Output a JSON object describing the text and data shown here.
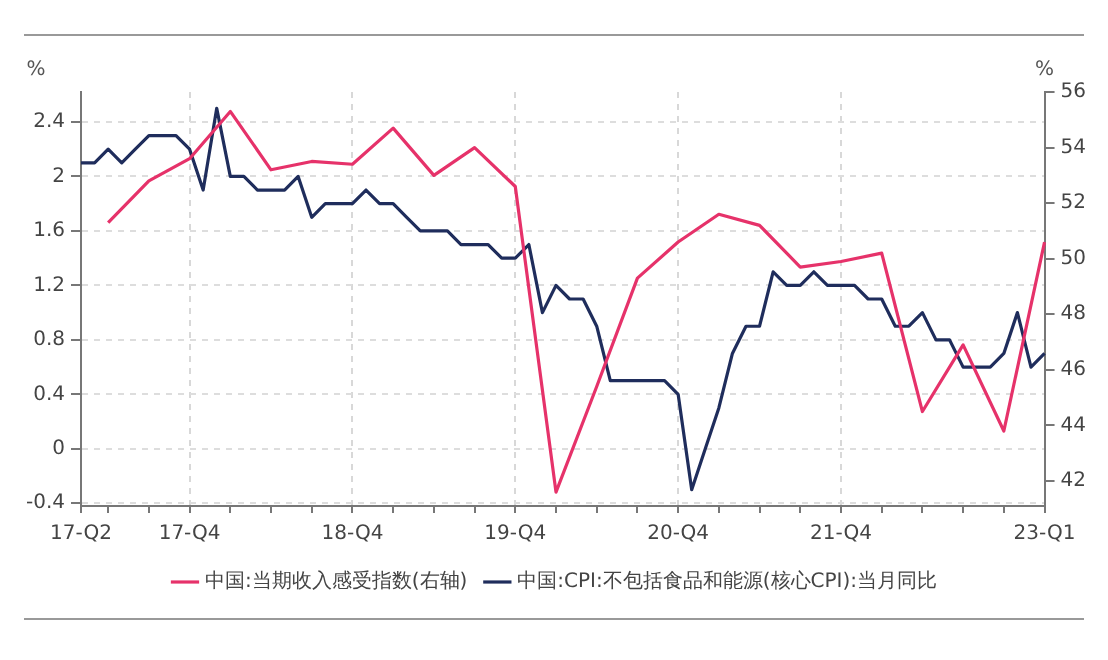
{
  "chart_data": {
    "type": "line",
    "ylabel": "%",
    "y2label": "%",
    "categories": [
      "17-Q2",
      null,
      null,
      null,
      null,
      null,
      null,
      null,
      "17-Q4",
      null,
      null,
      null,
      null,
      null,
      null,
      null,
      null,
      null,
      null,
      null,
      "18-Q4",
      null,
      null,
      null,
      null,
      null,
      null,
      null,
      null,
      null,
      null,
      null,
      "19-Q4",
      null,
      null,
      null,
      null,
      null,
      null,
      null,
      null,
      null,
      null,
      null,
      "20-Q4",
      null,
      null,
      null,
      null,
      null,
      null,
      null,
      null,
      null,
      null,
      null,
      "21-Q4",
      null,
      null,
      null,
      null,
      null,
      null,
      null,
      null,
      null,
      null,
      null,
      null,
      null,
      null,
      "23-Q1"
    ],
    "series": [
      {
        "name": "中国:当期收入感受指数(右轴)",
        "color": "#e6326a",
        "axis": "y2",
        "values": [
          null,
          null,
          51.3,
          null,
          null,
          52.8,
          null,
          null,
          53.6,
          null,
          null,
          55.3,
          null,
          null,
          53.2,
          null,
          null,
          53.5,
          null,
          null,
          53.4,
          null,
          null,
          54.7,
          null,
          null,
          53.0,
          null,
          null,
          54.0,
          null,
          null,
          52.6,
          null,
          null,
          41.6,
          null,
          null,
          45.4,
          null,
          null,
          49.3,
          null,
          null,
          50.6,
          null,
          null,
          51.6,
          null,
          null,
          51.2,
          null,
          null,
          49.7,
          null,
          null,
          49.9,
          null,
          null,
          50.2,
          null,
          null,
          44.5,
          null,
          null,
          46.9,
          null,
          null,
          43.8,
          null,
          null,
          50.6
        ]
      },
      {
        "name": "中国:CPI:不包括食品和能源(核心CPI):当月同比",
        "color": "#1f2d5c",
        "values": [
          2.1,
          2.1,
          2.2,
          2.1,
          2.2,
          2.3,
          2.3,
          2.3,
          2.2,
          1.9,
          2.5,
          2.0,
          2.0,
          1.9,
          1.9,
          1.9,
          2.0,
          1.7,
          1.8,
          1.8,
          1.8,
          1.9,
          1.8,
          1.8,
          1.7,
          1.6,
          1.6,
          1.6,
          1.5,
          1.5,
          1.5,
          1.4,
          1.4,
          1.5,
          1.0,
          1.2,
          1.1,
          1.1,
          0.9,
          0.5,
          0.5,
          0.5,
          0.5,
          0.5,
          0.4,
          -0.3,
          0.0,
          0.3,
          0.7,
          0.9,
          0.9,
          1.3,
          1.2,
          1.2,
          1.3,
          1.2,
          1.2,
          1.2,
          1.1,
          1.1,
          0.9,
          0.9,
          1.0,
          0.8,
          0.8,
          0.6,
          0.6,
          0.6,
          0.7,
          1.0,
          0.6,
          0.7
        ]
      }
    ],
    "ylim": [
      -0.42,
      2.62
    ],
    "yticks": [
      -0.4,
      0,
      0.4,
      0.8,
      1.2,
      1.6,
      2,
      2.4
    ],
    "y2lim": [
      41.1,
      56
    ],
    "y2ticks": [
      42,
      44,
      46,
      48,
      50,
      52,
      54,
      56
    ],
    "grid": true,
    "legend": "bottom",
    "marker": "none",
    "line_style": "solid"
  }
}
